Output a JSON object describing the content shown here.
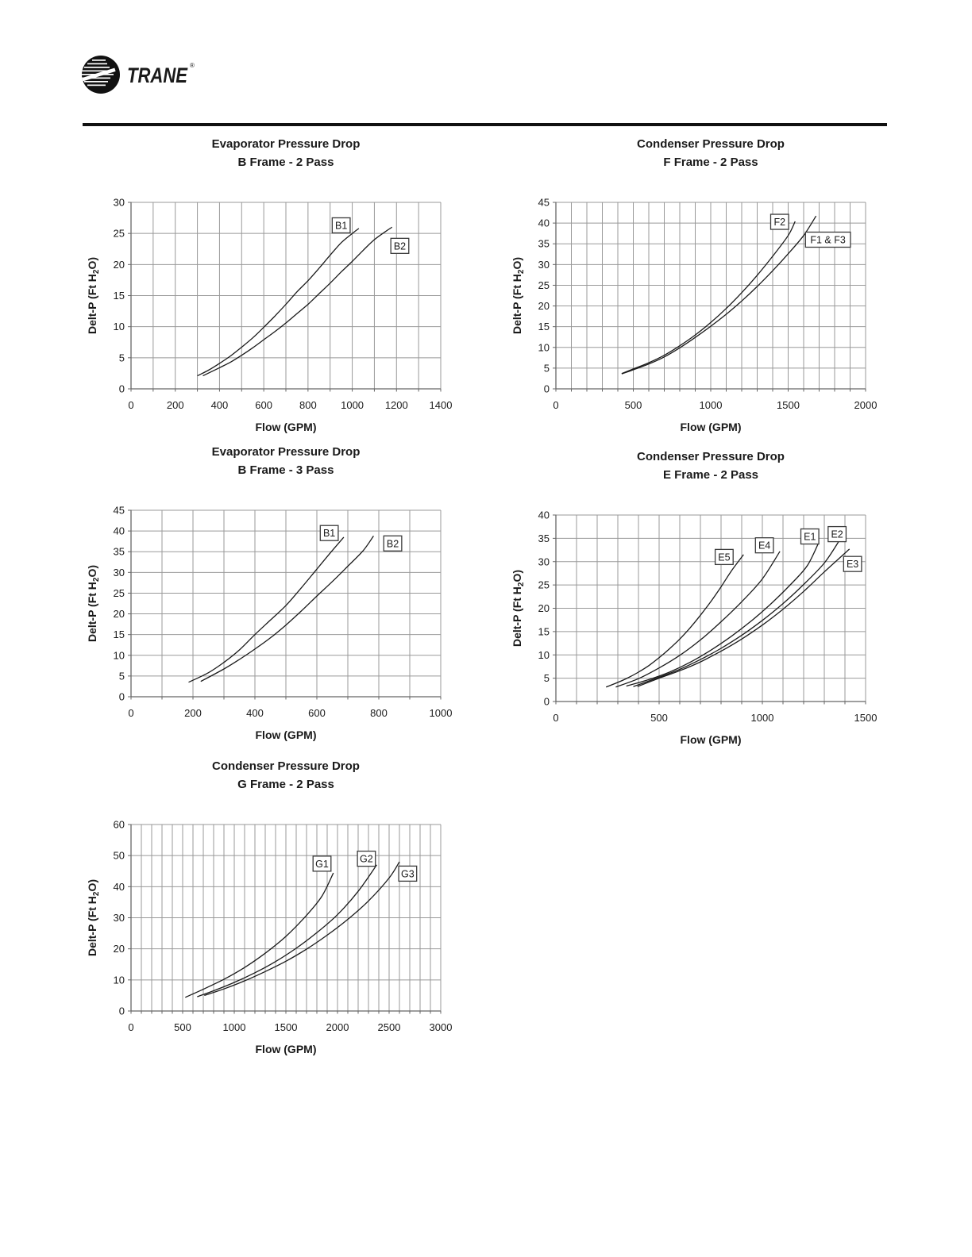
{
  "logo": {
    "brand": "TRANE",
    "mark": "®"
  },
  "style": {
    "grid_color": "#999999",
    "axis_color": "#666666",
    "curve_color": "#1a1a1a",
    "text_color": "#1a1a1a",
    "label_box_border": "#3a3a3a",
    "label_box_fill": "#ffffff"
  },
  "chart_data": [
    {
      "id": "evap-b-2pass",
      "type": "line",
      "title": "Evaporator Pressure Drop",
      "subtitle": "B Frame - 2 Pass",
      "xlabel": "Flow (GPM)",
      "ylabel": "Delt-P (Ft H₂O)",
      "grid": true,
      "legend_position": "inline-boxed-labels",
      "x_axis": {
        "min": 0,
        "max": 1400,
        "label_step": 200,
        "grid_step": 100
      },
      "y_axis": {
        "min": 0,
        "max": 30,
        "label_step": 5,
        "grid_step": 5
      },
      "series": [
        {
          "name": "B1",
          "label_pos": [
            950,
            26.3
          ],
          "points": [
            [
              300,
              2.1
            ],
            [
              350,
              3.0
            ],
            [
              400,
              4.1
            ],
            [
              450,
              5.3
            ],
            [
              500,
              6.7
            ],
            [
              550,
              8.2
            ],
            [
              600,
              9.9
            ],
            [
              650,
              11.7
            ],
            [
              700,
              13.6
            ],
            [
              750,
              15.6
            ],
            [
              800,
              17.4
            ],
            [
              850,
              19.4
            ],
            [
              900,
              21.5
            ],
            [
              950,
              23.5
            ],
            [
              1000,
              25.0
            ],
            [
              1030,
              25.8
            ]
          ]
        },
        {
          "name": "B2",
          "label_pos": [
            1215,
            23.0
          ],
          "points": [
            [
              325,
              2.1
            ],
            [
              400,
              3.4
            ],
            [
              450,
              4.3
            ],
            [
              500,
              5.4
            ],
            [
              550,
              6.6
            ],
            [
              600,
              7.9
            ],
            [
              650,
              9.2
            ],
            [
              700,
              10.6
            ],
            [
              750,
              12.1
            ],
            [
              800,
              13.6
            ],
            [
              850,
              15.3
            ],
            [
              900,
              17.0
            ],
            [
              950,
              18.8
            ],
            [
              1000,
              20.5
            ],
            [
              1050,
              22.3
            ],
            [
              1100,
              24.0
            ],
            [
              1150,
              25.3
            ],
            [
              1180,
              26.0
            ]
          ]
        }
      ]
    },
    {
      "id": "cond-f-2pass",
      "type": "line",
      "title": "Condenser Pressure Drop",
      "subtitle": "F Frame - 2 Pass",
      "xlabel": "Flow (GPM)",
      "ylabel": "Delt-P (Ft H₂O)",
      "grid": true,
      "legend_position": "inline-boxed-labels",
      "x_axis": {
        "min": 0,
        "max": 2000,
        "label_step": 500,
        "grid_step": 100
      },
      "y_axis": {
        "min": 0,
        "max": 45,
        "label_step": 5,
        "grid_step": 5
      },
      "series": [
        {
          "name": "F2",
          "label_pos": [
            1445,
            40.3
          ],
          "points": [
            [
              425,
              3.7
            ],
            [
              500,
              4.8
            ],
            [
              600,
              6.3
            ],
            [
              700,
              8.1
            ],
            [
              800,
              10.4
            ],
            [
              900,
              13.0
            ],
            [
              1000,
              16.0
            ],
            [
              1100,
              19.4
            ],
            [
              1200,
              23.2
            ],
            [
              1300,
              27.4
            ],
            [
              1400,
              32.0
            ],
            [
              1500,
              37.0
            ],
            [
              1545,
              40.4
            ]
          ]
        },
        {
          "name": "F1 & F3",
          "label_pos": [
            1757,
            36.0
          ],
          "points": [
            [
              425,
              3.6
            ],
            [
              500,
              4.6
            ],
            [
              600,
              6.0
            ],
            [
              700,
              7.7
            ],
            [
              800,
              9.9
            ],
            [
              900,
              12.4
            ],
            [
              1000,
              15.1
            ],
            [
              1100,
              18.0
            ],
            [
              1200,
              21.2
            ],
            [
              1300,
              24.7
            ],
            [
              1400,
              28.5
            ],
            [
              1500,
              32.6
            ],
            [
              1600,
              37.0
            ],
            [
              1680,
              41.7
            ]
          ]
        }
      ]
    },
    {
      "id": "evap-b-3pass",
      "type": "line",
      "title": "Evaporator Pressure Drop",
      "subtitle": "B Frame - 3 Pass",
      "xlabel": "Flow (GPM)",
      "ylabel": "Delt-P (Ft H₂O)",
      "grid": true,
      "legend_position": "inline-boxed-labels",
      "x_axis": {
        "min": 0,
        "max": 1000,
        "label_step": 200,
        "grid_step": 100
      },
      "y_axis": {
        "min": 0,
        "max": 45,
        "label_step": 5,
        "grid_step": 5
      },
      "series": [
        {
          "name": "B1",
          "label_pos": [
            640,
            39.5
          ],
          "points": [
            [
              186,
              3.5
            ],
            [
              250,
              5.8
            ],
            [
              300,
              8.3
            ],
            [
              350,
              11.3
            ],
            [
              400,
              15.0
            ],
            [
              450,
              18.5
            ],
            [
              500,
              22.0
            ],
            [
              550,
              26.3
            ],
            [
              600,
              30.8
            ],
            [
              650,
              35.3
            ],
            [
              687,
              38.5
            ]
          ]
        },
        {
          "name": "B2",
          "label_pos": [
            845,
            37.0
          ],
          "points": [
            [
              225,
              3.7
            ],
            [
              300,
              6.7
            ],
            [
              350,
              9.0
            ],
            [
              400,
              11.5
            ],
            [
              450,
              14.2
            ],
            [
              500,
              17.3
            ],
            [
              550,
              20.7
            ],
            [
              600,
              24.3
            ],
            [
              650,
              27.8
            ],
            [
              700,
              31.5
            ],
            [
              750,
              35.3
            ],
            [
              783,
              38.8
            ]
          ]
        }
      ]
    },
    {
      "id": "cond-e-2pass",
      "type": "line",
      "title": "Condenser Pressure Drop",
      "subtitle": "E Frame - 2 Pass",
      "xlabel": "Flow (GPM)",
      "ylabel": "Delt-P (Ft H₂O)",
      "grid": true,
      "legend_position": "inline-boxed-labels",
      "x_axis": {
        "min": 0,
        "max": 1500,
        "label_step": 500,
        "grid_step": 100
      },
      "y_axis": {
        "min": 0,
        "max": 40,
        "label_step": 5,
        "grid_step": 5
      },
      "series": [
        {
          "name": "E5",
          "label_pos": [
            815,
            31.0
          ],
          "points": [
            [
              243,
              3.1
            ],
            [
              300,
              4.1
            ],
            [
              350,
              5.1
            ],
            [
              400,
              6.3
            ],
            [
              450,
              7.7
            ],
            [
              500,
              9.4
            ],
            [
              550,
              11.3
            ],
            [
              600,
              13.4
            ],
            [
              650,
              15.8
            ],
            [
              700,
              18.5
            ],
            [
              750,
              21.4
            ],
            [
              800,
              24.6
            ],
            [
              850,
              28.0
            ],
            [
              909,
              31.5
            ]
          ]
        },
        {
          "name": "E4",
          "label_pos": [
            1010,
            33.5
          ],
          "points": [
            [
              290,
              3.1
            ],
            [
              400,
              4.9
            ],
            [
              500,
              7.2
            ],
            [
              600,
              9.9
            ],
            [
              700,
              13.2
            ],
            [
              800,
              17.1
            ],
            [
              900,
              21.4
            ],
            [
              1000,
              26.3
            ],
            [
              1085,
              32.2
            ]
          ]
        },
        {
          "name": "E1",
          "label_pos": [
            1230,
            35.4
          ],
          "points": [
            [
              341,
              3.3
            ],
            [
              450,
              4.7
            ],
            [
              550,
              6.3
            ],
            [
              650,
              8.4
            ],
            [
              750,
              11.0
            ],
            [
              850,
              14.0
            ],
            [
              950,
              17.4
            ],
            [
              1050,
              21.3
            ],
            [
              1150,
              25.7
            ],
            [
              1220,
              29.3
            ],
            [
              1273,
              34.1
            ]
          ]
        },
        {
          "name": "E2",
          "label_pos": [
            1362,
            35.9
          ],
          "points": [
            [
              375,
              3.2
            ],
            [
              500,
              5.2
            ],
            [
              600,
              6.9
            ],
            [
              700,
              9.0
            ],
            [
              800,
              11.4
            ],
            [
              900,
              14.2
            ],
            [
              1000,
              17.4
            ],
            [
              1100,
              21.0
            ],
            [
              1200,
              25.1
            ],
            [
              1300,
              29.7
            ],
            [
              1371,
              34.4
            ]
          ]
        },
        {
          "name": "E3",
          "label_pos": [
            1437,
            29.5
          ],
          "points": [
            [
              395,
              3.2
            ],
            [
              500,
              5.0
            ],
            [
              600,
              6.6
            ],
            [
              700,
              8.5
            ],
            [
              800,
              10.8
            ],
            [
              900,
              13.4
            ],
            [
              1000,
              16.4
            ],
            [
              1100,
              19.8
            ],
            [
              1200,
              23.6
            ],
            [
              1300,
              27.8
            ],
            [
              1422,
              32.7
            ]
          ]
        }
      ]
    },
    {
      "id": "cond-g-2pass",
      "type": "line",
      "title": "Condenser Pressure Drop",
      "subtitle": "G Frame - 2 Pass",
      "xlabel": "Flow (GPM)",
      "ylabel": "Delt-P (Ft H₂O)",
      "grid": true,
      "legend_position": "inline-boxed-labels",
      "x_axis": {
        "min": 0,
        "max": 3000,
        "label_step": 500,
        "grid_step": 100
      },
      "y_axis": {
        "min": 0,
        "max": 60,
        "label_step": 10,
        "grid_step": 10
      },
      "series": [
        {
          "name": "G1",
          "label_pos": [
            1850,
            47.4
          ],
          "points": [
            [
              525,
              4.4
            ],
            [
              700,
              7.0
            ],
            [
              900,
              10.2
            ],
            [
              1100,
              14.0
            ],
            [
              1300,
              18.6
            ],
            [
              1500,
              24.0
            ],
            [
              1700,
              30.8
            ],
            [
              1850,
              37.0
            ],
            [
              1960,
              44.4
            ]
          ]
        },
        {
          "name": "G2",
          "label_pos": [
            2280,
            49.0
          ],
          "points": [
            [
              641,
              4.6
            ],
            [
              800,
              6.5
            ],
            [
              1000,
              9.2
            ],
            [
              1200,
              12.3
            ],
            [
              1400,
              15.9
            ],
            [
              1600,
              20.2
            ],
            [
              1800,
              25.2
            ],
            [
              2000,
              31.0
            ],
            [
              2200,
              38.5
            ],
            [
              2380,
              47.0
            ]
          ]
        },
        {
          "name": "G3",
          "label_pos": [
            2680,
            44.2
          ],
          "points": [
            [
              710,
              5.0
            ],
            [
              900,
              7.1
            ],
            [
              1100,
              9.7
            ],
            [
              1300,
              12.7
            ],
            [
              1500,
              16.0
            ],
            [
              1700,
              19.9
            ],
            [
              1900,
              24.4
            ],
            [
              2100,
              29.5
            ],
            [
              2300,
              35.4
            ],
            [
              2500,
              42.8
            ],
            [
              2600,
              48.0
            ]
          ]
        }
      ]
    }
  ]
}
